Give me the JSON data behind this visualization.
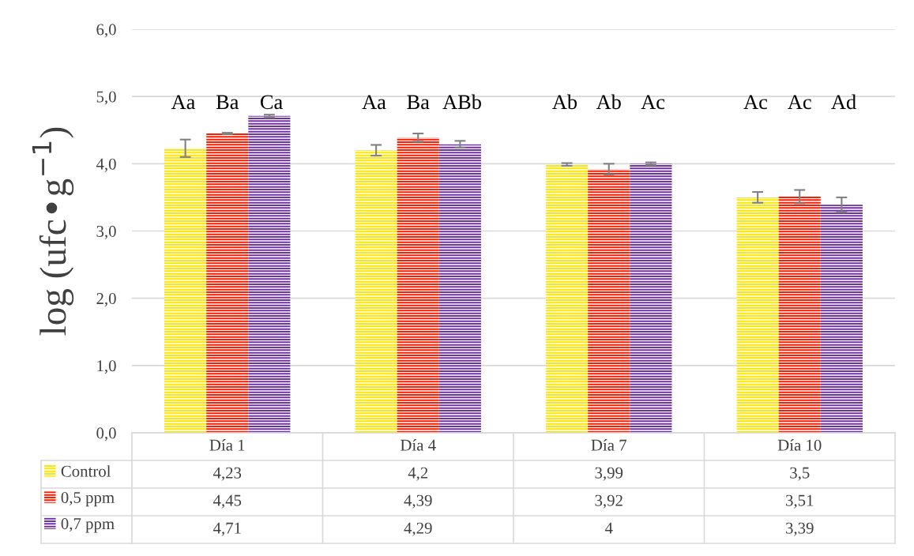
{
  "chart_data": {
    "type": "bar",
    "ylabel": "log (ufc•g$^{−1}$)",
    "categories": [
      "Día 1",
      "Día 4",
      "Día 7",
      "Día 10"
    ],
    "series": [
      {
        "name": "Control",
        "color": "#ffe600",
        "values": [
          4.23,
          4.2,
          3.99,
          3.5
        ],
        "errors": [
          0.13,
          0.08,
          0.02,
          0.08
        ]
      },
      {
        "name": "0,5 ppm",
        "color": "#ff1a00",
        "values": [
          4.45,
          4.39,
          3.92,
          3.51
        ],
        "errors": [
          0.01,
          0.06,
          0.08,
          0.1
        ]
      },
      {
        "name": "0,7 ppm",
        "color": "#7030a0",
        "values": [
          4.71,
          4.29,
          4,
          3.39
        ],
        "errors": [
          0.02,
          0.05,
          0.02,
          0.11
        ]
      }
    ],
    "value_labels": [
      [
        "4,23",
        "4,2",
        "3,99",
        "3,5"
      ],
      [
        "4,45",
        "4,39",
        "3,92",
        "3,51"
      ],
      [
        "4,71",
        "4,29",
        "4",
        "3,39"
      ]
    ],
    "ylim": [
      0,
      6
    ],
    "yticks": [
      {
        "value": 0,
        "label": "0,0"
      },
      {
        "value": 1,
        "label": "1,0"
      },
      {
        "value": 2,
        "label": "2,0"
      },
      {
        "value": 3,
        "label": "3,0"
      },
      {
        "value": 4,
        "label": "4,0"
      },
      {
        "value": 5,
        "label": "5,0"
      },
      {
        "value": 6,
        "label": "6,0"
      }
    ],
    "grid": "y",
    "legend": "bottom",
    "annotations": [
      "Aa",
      "Ba",
      "Ca",
      "Aa",
      "Ba",
      "ABb",
      "Ab",
      "Ab",
      "Ac",
      "Ac",
      "Ac",
      "Ad"
    ]
  }
}
